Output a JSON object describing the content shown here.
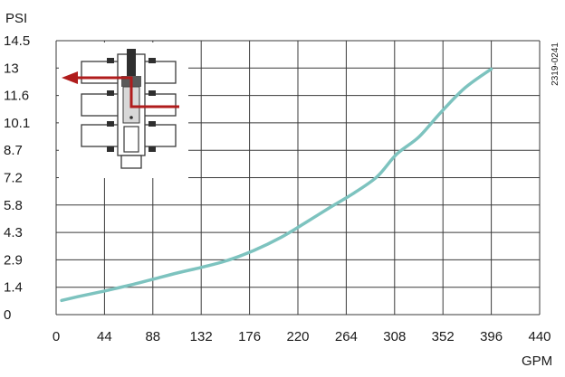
{
  "chart_data": {
    "type": "line",
    "title": "",
    "xlabel": "GPM",
    "ylabel": "PSI",
    "x_ticks": [
      0,
      44,
      88,
      132,
      176,
      220,
      264,
      308,
      352,
      396,
      440
    ],
    "y_ticks": [
      "0",
      "1.4",
      "2.9",
      "4.3",
      "5.8",
      "7.2",
      "8.7",
      "10.1",
      "11.6",
      "13",
      "14.5"
    ],
    "xlim": [
      0,
      440
    ],
    "ylim": [
      0,
      14.5
    ],
    "grid": true,
    "series": [
      {
        "color": "#7dc3bf",
        "x": [
          5,
          20,
          44,
          70,
          90,
          110,
          132,
          155,
          180,
          205,
          225,
          250,
          270,
          292,
          310,
          330,
          350,
          372,
          396
        ],
        "y": [
          0.75,
          0.95,
          1.25,
          1.6,
          1.9,
          2.2,
          2.5,
          2.85,
          3.4,
          4.1,
          4.8,
          5.7,
          6.4,
          7.3,
          8.5,
          9.4,
          10.7,
          12.0,
          13.0
        ]
      }
    ]
  },
  "figure_code": "2319-0241",
  "inset": {
    "icon": "valve-cross-section-icon",
    "arrow_color": "#b01c1c"
  }
}
